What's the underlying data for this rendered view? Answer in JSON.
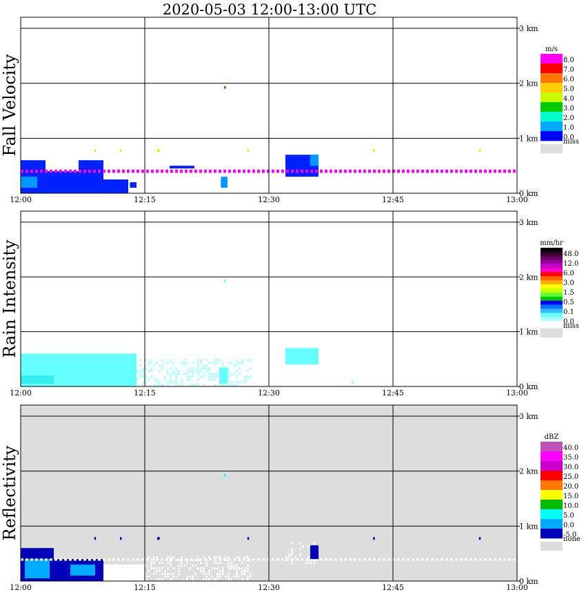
{
  "title": "2020-05-03   12:00-13:00 UTC",
  "chart_data": [
    {
      "type": "heatmap",
      "ylabel": "Fall Velocity",
      "background": "#ffffff",
      "x_ticks": [
        "12:00",
        "12:15",
        "12:30",
        "12:45",
        "13:00"
      ],
      "x_range_min": [
        0,
        60
      ],
      "y_ticks": [
        "0 km",
        "1 km",
        "2 km",
        "3 km"
      ],
      "y_range_km": [
        0,
        3.2
      ],
      "colorbar": {
        "unit": "m/s",
        "labels": [
          "8.0",
          "7.0",
          "6.0",
          "5.0",
          "4.0",
          "3.0",
          "2.0",
          "1.0",
          "0.0",
          "miss"
        ],
        "colors": [
          "#ff00ff",
          "#ff0000",
          "#ff7700",
          "#ffcc00",
          "#c8ff00",
          "#00cc00",
          "#00ffcc",
          "#00aaff",
          "#0000ff",
          "#dddddd"
        ]
      },
      "data_regions": [
        {
          "t0": 0,
          "t1": 3,
          "h0": 0.0,
          "h1": 0.6,
          "color": "#0022ff"
        },
        {
          "t0": 0,
          "t1": 2,
          "h0": 0.1,
          "h1": 0.3,
          "color": "#0099ff"
        },
        {
          "t0": 3,
          "t1": 7,
          "h0": 0.0,
          "h1": 0.4,
          "color": "#0022ff"
        },
        {
          "t0": 7,
          "t1": 10,
          "h0": 0.0,
          "h1": 0.6,
          "color": "#0022ff"
        },
        {
          "t0": 10,
          "t1": 13,
          "h0": 0.0,
          "h1": 0.25,
          "color": "#0022ff"
        },
        {
          "t0": 13.2,
          "t1": 14,
          "h0": 0.1,
          "h1": 0.2,
          "color": "#0022ff"
        },
        {
          "t0": 24.2,
          "t1": 25,
          "h0": 0.1,
          "h1": 0.3,
          "color": "#0099ff"
        },
        {
          "t0": 32,
          "t1": 36,
          "h0": 0.3,
          "h1": 0.7,
          "color": "#0022ff"
        },
        {
          "t0": 35,
          "t1": 36,
          "h0": 0.5,
          "h1": 0.7,
          "color": "#0099ff"
        },
        {
          "t0": 18,
          "t1": 21,
          "h0": 0.45,
          "h1": 0.5,
          "color": "#0022ff"
        },
        {
          "t0": 0,
          "t1": 60,
          "h0": 0.37,
          "h1": 0.43,
          "color": "#ff00ff",
          "dashed": true
        },
        {
          "t0": 8.9,
          "t1": 9.1,
          "h0": 0.75,
          "h1": 0.8,
          "color": "#c8ff00"
        },
        {
          "t0": 12,
          "t1": 12.2,
          "h0": 0.75,
          "h1": 0.8,
          "color": "#c8ff00"
        },
        {
          "t0": 16.5,
          "t1": 16.8,
          "h0": 0.75,
          "h1": 0.8,
          "color": "#c8ff00"
        },
        {
          "t0": 27.4,
          "t1": 27.6,
          "h0": 0.75,
          "h1": 0.8,
          "color": "#c8ff00"
        },
        {
          "t0": 42.6,
          "t1": 42.8,
          "h0": 0.75,
          "h1": 0.8,
          "color": "#c8ff00"
        },
        {
          "t0": 55.4,
          "t1": 55.6,
          "h0": 0.75,
          "h1": 0.8,
          "color": "#c8ff00"
        },
        {
          "t0": 24.6,
          "t1": 24.8,
          "h0": 1.9,
          "h1": 1.95,
          "color": "#cc3300"
        }
      ]
    },
    {
      "type": "heatmap",
      "ylabel": "Rain Intensity",
      "background": "#ffffff",
      "x_ticks": [
        "12:00",
        "12:15",
        "12:30",
        "12:45",
        "13:00"
      ],
      "x_range_min": [
        0,
        60
      ],
      "y_ticks": [
        "0 km",
        "1 km",
        "2 km",
        "3 km"
      ],
      "y_range_km": [
        0,
        3.2
      ],
      "colorbar": {
        "unit": "mm/hr",
        "labels": [
          "48.0",
          "12.0",
          "6.0",
          "3.0",
          "1.5",
          "0.5",
          "0.1",
          "0.0",
          "miss"
        ],
        "colors": [
          "#000000",
          "#330033",
          "#660066",
          "#990099",
          "#cc00cc",
          "#ff00cc",
          "#ff0000",
          "#ff6600",
          "#ffaa00",
          "#ffff00",
          "#ccff00",
          "#66ff33",
          "#00cc00",
          "#0000ff",
          "#0077ff",
          "#33bbff",
          "#66ffff",
          "#aaffff",
          "#ffffff",
          "#dddddd"
        ]
      },
      "data_regions": [
        {
          "t0": 0,
          "t1": 14,
          "h0": 0.0,
          "h1": 0.6,
          "color": "#66ffff"
        },
        {
          "t0": 0,
          "t1": 4,
          "h0": 0.05,
          "h1": 0.2,
          "color": "#33eeee"
        },
        {
          "t0": 14,
          "t1": 28,
          "h0": 0.0,
          "h1": 0.5,
          "color": "#aaffff",
          "sparse": true
        },
        {
          "t0": 24,
          "t1": 25,
          "h0": 0.05,
          "h1": 0.35,
          "color": "#66ffff"
        },
        {
          "t0": 32,
          "t1": 36,
          "h0": 0.4,
          "h1": 0.7,
          "color": "#66ffff"
        },
        {
          "t0": 40,
          "t1": 40.3,
          "h0": 0.05,
          "h1": 0.1,
          "color": "#aaffff"
        },
        {
          "t0": 24.6,
          "t1": 24.8,
          "h0": 1.9,
          "h1": 1.95,
          "color": "#66ffff"
        }
      ]
    },
    {
      "type": "heatmap",
      "ylabel": "Reflectivity",
      "background": "#dddddd",
      "x_ticks": [
        "12:00",
        "12:15",
        "12:30",
        "12:45",
        "13:00"
      ],
      "x_range_min": [
        0,
        60
      ],
      "y_ticks": [
        "0 km",
        "1 km",
        "2 km",
        "3 km"
      ],
      "y_range_km": [
        0,
        3.2
      ],
      "colorbar": {
        "unit": "dBZ",
        "labels": [
          "40.0",
          "35.0",
          "30.0",
          "25.0",
          "20.0",
          "15.0",
          "10.0",
          "5.0",
          "0.0",
          "-5.0",
          "none"
        ],
        "colors": [
          "#bb55bb",
          "#ff00ff",
          "#cc00cc",
          "#ff0000",
          "#ff7700",
          "#ffff00",
          "#00bb00",
          "#00ffff",
          "#00aaff",
          "#0000bb",
          "#dddddd"
        ]
      },
      "data_regions": [
        {
          "t0": 0,
          "t1": 4,
          "h0": 0.0,
          "h1": 0.6,
          "color": "#0000bb"
        },
        {
          "t0": 0.5,
          "t1": 3.5,
          "h0": 0.05,
          "h1": 0.4,
          "color": "#00aaff"
        },
        {
          "t0": 4,
          "t1": 10,
          "h0": 0.0,
          "h1": 0.4,
          "color": "#0000bb"
        },
        {
          "t0": 6,
          "t1": 9,
          "h0": 0.1,
          "h1": 0.3,
          "color": "#00aaff"
        },
        {
          "t0": 10,
          "t1": 15,
          "h0": 0.0,
          "h1": 0.3,
          "color": "#ffffff"
        },
        {
          "t0": 15,
          "t1": 28,
          "h0": 0.0,
          "h1": 0.45,
          "color": "#ffffff",
          "sparse": true
        },
        {
          "t0": 0,
          "t1": 60,
          "h0": 0.37,
          "h1": 0.41,
          "color": "#ffffff",
          "dashed": true
        },
        {
          "t0": 32,
          "t1": 36,
          "h0": 0.3,
          "h1": 0.7,
          "color": "#ffffff",
          "sparse": true
        },
        {
          "t0": 35,
          "t1": 36,
          "h0": 0.4,
          "h1": 0.65,
          "color": "#0000bb"
        },
        {
          "t0": 8.9,
          "t1": 9.1,
          "h0": 0.75,
          "h1": 0.8,
          "color": "#0000bb"
        },
        {
          "t0": 12,
          "t1": 12.2,
          "h0": 0.75,
          "h1": 0.8,
          "color": "#0000bb"
        },
        {
          "t0": 16.5,
          "t1": 16.8,
          "h0": 0.75,
          "h1": 0.8,
          "color": "#0000bb"
        },
        {
          "t0": 27.4,
          "t1": 27.6,
          "h0": 0.75,
          "h1": 0.8,
          "color": "#0000bb"
        },
        {
          "t0": 42.6,
          "t1": 42.8,
          "h0": 0.75,
          "h1": 0.8,
          "color": "#0000bb"
        },
        {
          "t0": 55.4,
          "t1": 55.6,
          "h0": 0.75,
          "h1": 0.8,
          "color": "#0000bb"
        },
        {
          "t0": 24.6,
          "t1": 24.8,
          "h0": 1.9,
          "h1": 1.95,
          "color": "#00ffff"
        }
      ]
    }
  ]
}
